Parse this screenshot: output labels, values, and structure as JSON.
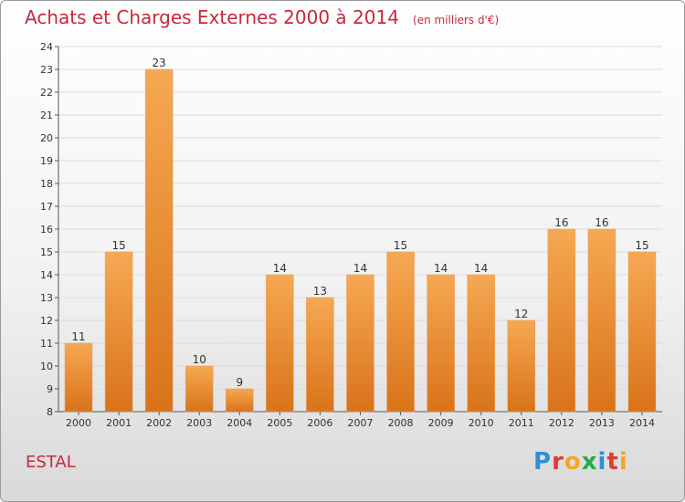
{
  "title": "Achats et Charges Externes 2000 à 2014",
  "subtitle": "(en milliers d'€)",
  "location": "ESTAL",
  "logo": {
    "letters": [
      "P",
      "r",
      "o",
      "x",
      "i",
      "t",
      "i"
    ],
    "colors": [
      "#2f8fd6",
      "#e23b2e",
      "#f5a623",
      "#2aa84a",
      "#2f8fd6",
      "#e23b2e",
      "#f5a623"
    ]
  },
  "colors": {
    "bar_top": "#f6a852",
    "bar_bottom": "#d9731a",
    "title": "#c8283c"
  },
  "chart_data": {
    "type": "bar",
    "categories": [
      "2000",
      "2001",
      "2002",
      "2003",
      "2004",
      "2005",
      "2006",
      "2007",
      "2008",
      "2009",
      "2010",
      "2011",
      "2012",
      "2013",
      "2014"
    ],
    "values": [
      11,
      15,
      23,
      10,
      9,
      14,
      13,
      14,
      15,
      14,
      14,
      12,
      16,
      16,
      15
    ],
    "title": "Achats et Charges Externes 2000 à 2014",
    "ylim": [
      8,
      24
    ],
    "yticks": [
      8,
      9,
      10,
      11,
      12,
      13,
      14,
      15,
      16,
      17,
      18,
      19,
      20,
      21,
      22,
      23,
      24
    ],
    "grid": true
  }
}
